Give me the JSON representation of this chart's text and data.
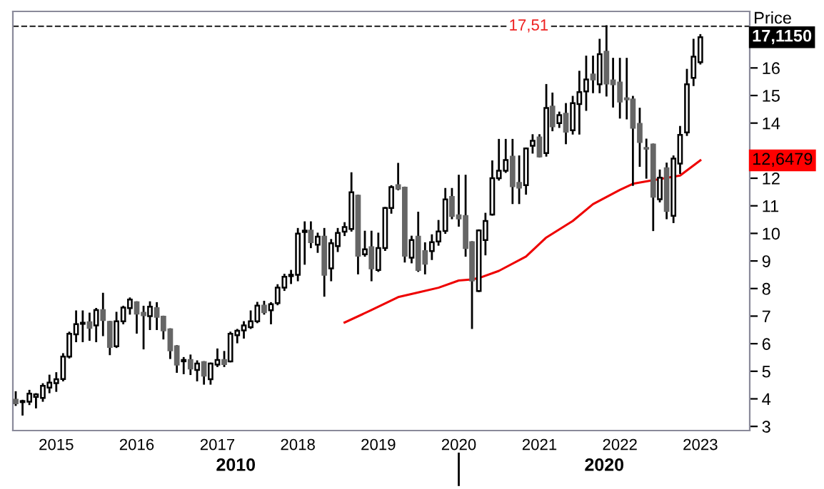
{
  "chart_data": {
    "type": "candlestick",
    "ylabel": "Price",
    "x": [
      "2014-07",
      "2014-08",
      "2014-09",
      "2014-10",
      "2014-11",
      "2014-12",
      "2015-01",
      "2015-02",
      "2015-03",
      "2015-04",
      "2015-05",
      "2015-06",
      "2015-07",
      "2015-08",
      "2015-09",
      "2015-10",
      "2015-11",
      "2015-12",
      "2016-01",
      "2016-02",
      "2016-03",
      "2016-04",
      "2016-05",
      "2016-06",
      "2016-07",
      "2016-08",
      "2016-09",
      "2016-10",
      "2016-11",
      "2016-12",
      "2017-01",
      "2017-02",
      "2017-03",
      "2017-04",
      "2017-05",
      "2017-06",
      "2017-07",
      "2017-08",
      "2017-09",
      "2017-10",
      "2017-11",
      "2017-12",
      "2018-01",
      "2018-02",
      "2018-03",
      "2018-04",
      "2018-05",
      "2018-06",
      "2018-07",
      "2018-08",
      "2018-09",
      "2018-10",
      "2018-11",
      "2018-12",
      "2019-01",
      "2019-02",
      "2019-03",
      "2019-04",
      "2019-05",
      "2019-06",
      "2019-07",
      "2019-08",
      "2019-09",
      "2019-10",
      "2019-11",
      "2019-12",
      "2020-01",
      "2020-02",
      "2020-03",
      "2020-04",
      "2020-05",
      "2020-06",
      "2020-07",
      "2020-08",
      "2020-09",
      "2020-10",
      "2020-11",
      "2020-12",
      "2021-01",
      "2021-02",
      "2021-03",
      "2021-04",
      "2021-05",
      "2021-06",
      "2021-07",
      "2021-08",
      "2021-09",
      "2021-10",
      "2021-11",
      "2021-12",
      "2022-01",
      "2022-02",
      "2022-03",
      "2022-04",
      "2022-05",
      "2022-06",
      "2022-07",
      "2022-08",
      "2022-09",
      "2022-10",
      "2022-11",
      "2022-12",
      "2023-01"
    ],
    "ohlc": [
      [
        3.97,
        4.24,
        3.78,
        3.84
      ],
      [
        3.88,
        3.93,
        3.43,
        3.92
      ],
      [
        3.9,
        4.29,
        3.81,
        4.19
      ],
      [
        4.07,
        4.17,
        3.69,
        4.16
      ],
      [
        4.03,
        4.53,
        3.93,
        4.47
      ],
      [
        4.41,
        4.84,
        4.24,
        4.59
      ],
      [
        4.57,
        4.93,
        4.29,
        4.71
      ],
      [
        4.72,
        5.62,
        4.67,
        5.53
      ],
      [
        5.53,
        6.4,
        5.5,
        6.36
      ],
      [
        6.34,
        7.17,
        6.09,
        6.71
      ],
      [
        6.72,
        7.17,
        6.09,
        6.76
      ],
      [
        6.78,
        7.09,
        6.14,
        6.57
      ],
      [
        6.66,
        7.26,
        6.09,
        7.22
      ],
      [
        7.22,
        7.81,
        6.31,
        6.86
      ],
      [
        6.79,
        6.79,
        5.62,
        5.88
      ],
      [
        5.91,
        7.12,
        5.88,
        6.81
      ],
      [
        6.81,
        7.34,
        6.74,
        7.31
      ],
      [
        7.29,
        7.64,
        7.09,
        7.6
      ],
      [
        7.5,
        7.5,
        6.4,
        7.09
      ],
      [
        7.12,
        7.34,
        5.83,
        7.03
      ],
      [
        7.0,
        7.5,
        6.53,
        7.34
      ],
      [
        7.29,
        7.47,
        6.53,
        6.97
      ],
      [
        6.98,
        6.98,
        6.19,
        6.48
      ],
      [
        6.52,
        6.52,
        5.48,
        5.76
      ],
      [
        5.91,
        5.91,
        4.98,
        5.24
      ],
      [
        5.36,
        5.48,
        4.93,
        5.41
      ],
      [
        5.41,
        5.57,
        4.9,
        5.1
      ],
      [
        5.05,
        5.36,
        4.67,
        5.28
      ],
      [
        5.33,
        5.33,
        4.55,
        4.84
      ],
      [
        4.71,
        5.28,
        4.55,
        5.28
      ],
      [
        5.24,
        5.79,
        5.19,
        5.41
      ],
      [
        5.41,
        5.7,
        5.19,
        5.26
      ],
      [
        5.36,
        6.4,
        5.36,
        6.36
      ],
      [
        6.31,
        6.5,
        6.05,
        6.47
      ],
      [
        6.48,
        6.78,
        6.22,
        6.66
      ],
      [
        6.6,
        7.17,
        6.57,
        6.81
      ],
      [
        6.81,
        7.48,
        6.78,
        7.38
      ],
      [
        7.38,
        7.52,
        7.09,
        7.14
      ],
      [
        7.21,
        7.47,
        6.74,
        7.43
      ],
      [
        7.47,
        8.12,
        7.43,
        8.03
      ],
      [
        8.03,
        8.5,
        7.95,
        8.43
      ],
      [
        8.45,
        8.64,
        8.2,
        8.5
      ],
      [
        8.5,
        10.16,
        8.3,
        9.99
      ],
      [
        10.05,
        10.4,
        8.9,
        10.1
      ],
      [
        10.1,
        10.4,
        9.5,
        9.68
      ],
      [
        9.59,
        9.99,
        9.33,
        9.88
      ],
      [
        9.88,
        10.16,
        7.74,
        8.5
      ],
      [
        8.73,
        9.76,
        8.3,
        9.64
      ],
      [
        9.54,
        10.16,
        9.36,
        10.02
      ],
      [
        10.06,
        10.37,
        9.94,
        10.23
      ],
      [
        10.16,
        12.18,
        10.1,
        11.49
      ],
      [
        11.37,
        11.37,
        8.55,
        9.19
      ],
      [
        9.24,
        10.06,
        9.19,
        9.42
      ],
      [
        9.5,
        10.06,
        8.3,
        8.73
      ],
      [
        8.67,
        9.99,
        8.64,
        9.47
      ],
      [
        9.47,
        10.92,
        9.4,
        10.92
      ],
      [
        10.92,
        11.71,
        10.75,
        11.68
      ],
      [
        11.75,
        12.52,
        11.6,
        11.62
      ],
      [
        11.66,
        11.66,
        8.98,
        9.19
      ],
      [
        9.12,
        9.88,
        8.95,
        9.76
      ],
      [
        9.88,
        10.75,
        8.64,
        8.67
      ],
      [
        9.36,
        9.64,
        8.55,
        8.9
      ],
      [
        9.36,
        9.93,
        9.07,
        9.68
      ],
      [
        9.71,
        10.45,
        9.59,
        10.07
      ],
      [
        10.09,
        11.61,
        10.02,
        11.23
      ],
      [
        11.32,
        11.61,
        10.55,
        10.63
      ],
      [
        10.66,
        12.09,
        10.28,
        10.54
      ],
      [
        10.63,
        12.09,
        9.19,
        9.47
      ],
      [
        9.68,
        9.68,
        6.57,
        8.29
      ],
      [
        7.91,
        10.11,
        7.91,
        10.11
      ],
      [
        9.76,
        10.71,
        9.24,
        10.45
      ],
      [
        10.68,
        12.61,
        10.68,
        12.0
      ],
      [
        12.0,
        13.39,
        11.95,
        12.27
      ],
      [
        12.27,
        13.39,
        12.23,
        12.66
      ],
      [
        12.78,
        13.39,
        11.1,
        11.71
      ],
      [
        11.83,
        12.79,
        11.1,
        11.66
      ],
      [
        11.75,
        13.08,
        11.44,
        13.08
      ],
      [
        13.18,
        13.56,
        12.93,
        13.36
      ],
      [
        13.48,
        13.56,
        12.79,
        12.79
      ],
      [
        12.91,
        15.38,
        12.82,
        14.55
      ],
      [
        14.6,
        15.07,
        13.74,
        13.88
      ],
      [
        14.0,
        14.38,
        13.86,
        14.29
      ],
      [
        14.34,
        14.69,
        13.27,
        13.69
      ],
      [
        13.74,
        14.95,
        13.62,
        14.72
      ],
      [
        14.69,
        15.86,
        13.62,
        15.12
      ],
      [
        15.15,
        16.41,
        14.48,
        15.58
      ],
      [
        15.76,
        16.41,
        15.12,
        15.58
      ],
      [
        15.41,
        17.02,
        15.12,
        16.5
      ],
      [
        16.59,
        17.51,
        15.0,
        15.43
      ],
      [
        15.55,
        16.33,
        14.6,
        15.41
      ],
      [
        15.47,
        16.33,
        14.2,
        14.78
      ],
      [
        14.9,
        16.33,
        14.17,
        14.86
      ],
      [
        14.86,
        14.95,
        11.76,
        13.83
      ],
      [
        13.97,
        14.52,
        12.45,
        13.31
      ],
      [
        13.1,
        13.4,
        12.02,
        13.07
      ],
      [
        13.22,
        13.22,
        10.12,
        11.33
      ],
      [
        11.24,
        12.28,
        11.16,
        12.02
      ],
      [
        12.36,
        12.53,
        10.55,
        10.81
      ],
      [
        10.64,
        12.79,
        10.41,
        12.71
      ],
      [
        12.53,
        13.86,
        12.19,
        13.57
      ],
      [
        13.66,
        15.93,
        13.57,
        15.41
      ],
      [
        15.64,
        17.02,
        15.38,
        16.41
      ],
      [
        16.21,
        17.19,
        16.16,
        17.115
      ]
    ],
    "series": [
      {
        "type": "line",
        "color": "#ee0000",
        "x": [
          "2018-08",
          "2018-12",
          "2019-04",
          "2019-07",
          "2019-10",
          "2020-01",
          "2020-03",
          "2020-04",
          "2020-07",
          "2020-11",
          "2021-02",
          "2021-06",
          "2021-09",
          "2022-01",
          "2022-03",
          "2022-06",
          "2022-10",
          "2023-01"
        ],
        "values": [
          6.77,
          7.22,
          7.69,
          7.86,
          8.03,
          8.29,
          8.33,
          8.38,
          8.64,
          9.16,
          9.85,
          10.45,
          11.06,
          11.58,
          11.8,
          11.93,
          12.1,
          12.65
        ]
      }
    ],
    "xlim": [
      "2014-06-18",
      "2023-08-13"
    ],
    "xticks": [
      {
        "value": "2015-01",
        "label": "2015"
      },
      {
        "value": "2016-01",
        "label": "2016"
      },
      {
        "value": "2017-01",
        "label": "2017"
      },
      {
        "value": "2018-01",
        "label": "2018"
      },
      {
        "value": "2019-01",
        "label": "2019"
      },
      {
        "value": "2020-01",
        "label": "2020"
      },
      {
        "value": "2021-01",
        "label": "2021"
      },
      {
        "value": "2022-01",
        "label": "2022"
      },
      {
        "value": "2023-01",
        "label": "2023"
      }
    ],
    "ylim": [
      2.85,
      18.05
    ],
    "yticks": [
      3,
      4,
      5,
      6,
      7,
      8,
      9,
      10,
      11,
      12,
      14,
      15,
      16
    ],
    "ref_lines": [
      {
        "axis": "y",
        "value": 17.51,
        "label": "17,51",
        "color": "#333333",
        "line_style": "dashed"
      }
    ],
    "annotations": [
      "17,1150",
      "12,6479",
      "2010",
      "2020"
    ],
    "grid": false,
    "legend": false
  }
}
